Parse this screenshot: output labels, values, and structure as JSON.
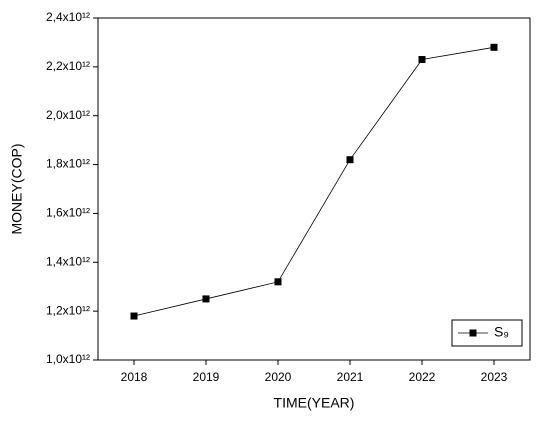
{
  "chart_data": {
    "type": "line",
    "x_label": "TIME(YEAR)",
    "y_label": "MONEY(COP)",
    "x": [
      2018,
      2019,
      2020,
      2021,
      2022,
      2023
    ],
    "series": [
      {
        "name": "S₉",
        "color": "#000000",
        "values": [
          1180000000000,
          1250000000000,
          1320000000000,
          1820000000000,
          2230000000000,
          2280000000000
        ]
      }
    ],
    "xlim": [
      2017.5,
      2023.5
    ],
    "xticks": [
      2018,
      2019,
      2020,
      2021,
      2022,
      2023
    ],
    "ylim": [
      1000000000000,
      2400000000000
    ],
    "yticks": [
      {
        "value": 1000000000000,
        "label": "1,0x10¹²"
      },
      {
        "value": 1200000000000,
        "label": "1,2x10¹²"
      },
      {
        "value": 1400000000000,
        "label": "1,4x10¹²"
      },
      {
        "value": 1600000000000,
        "label": "1,6x10¹²"
      },
      {
        "value": 1800000000000,
        "label": "1,8x10¹²"
      },
      {
        "value": 2000000000000,
        "label": "2,0x10¹²"
      },
      {
        "value": 2200000000000,
        "label": "2,2x10¹²"
      },
      {
        "value": 2400000000000,
        "label": "2,4x10¹²"
      }
    ],
    "legend": "lower right",
    "grid": false
  }
}
